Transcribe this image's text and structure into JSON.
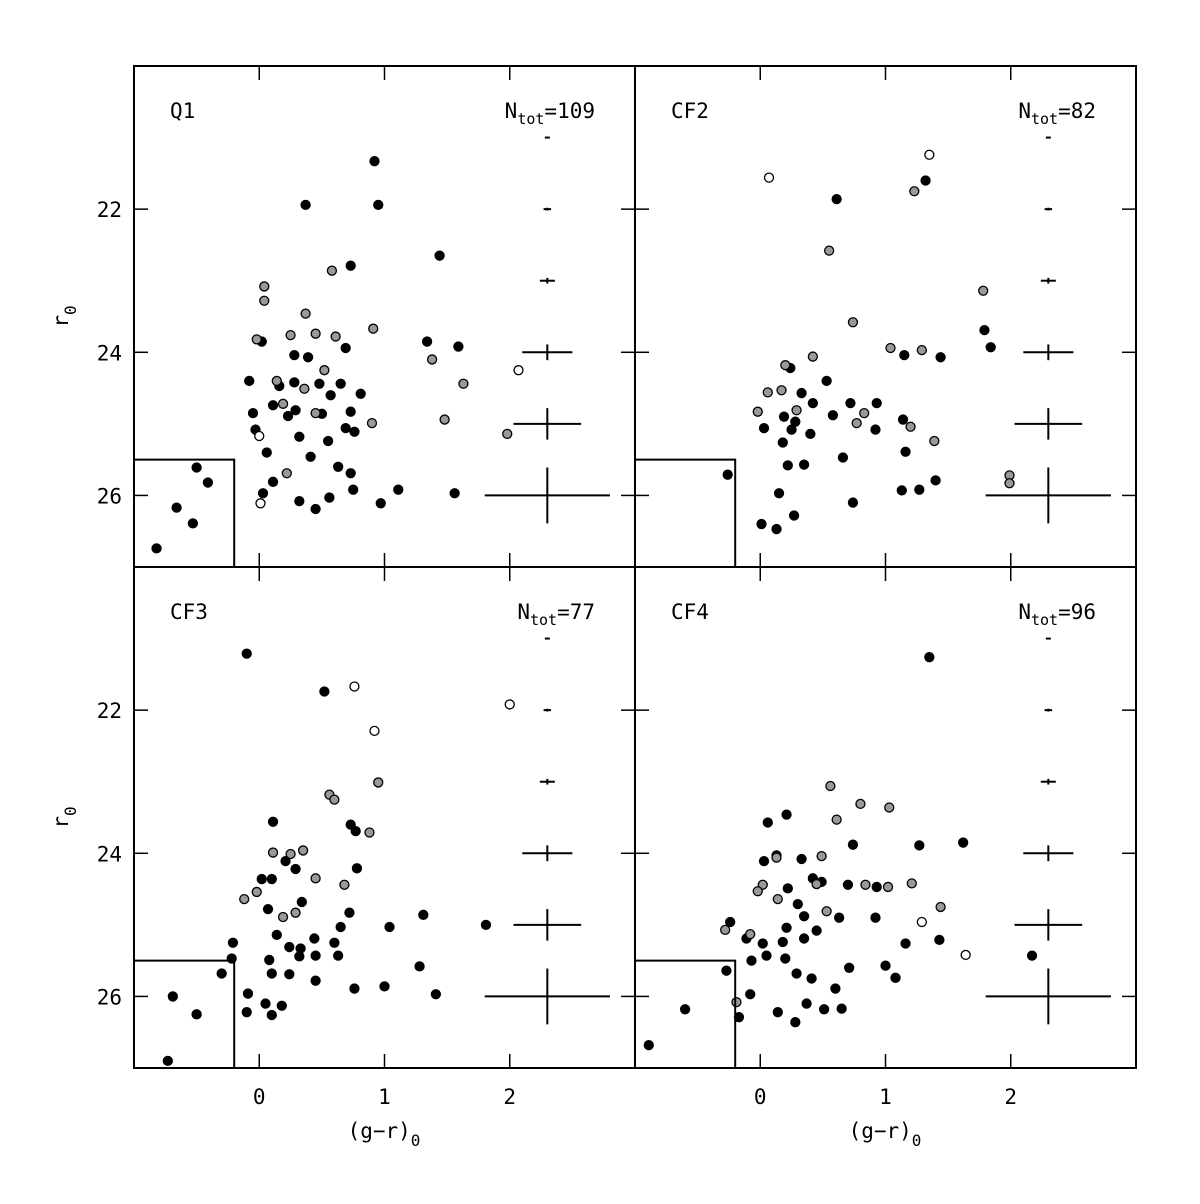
{
  "chart_data": [
    {
      "type": "scatter",
      "title": "Q1",
      "ntot": {
        "symbol": "N",
        "subscript": "tot",
        "text": "=109"
      },
      "ylabel": {
        "text": "r",
        "subscript": "0"
      },
      "tick_labels": [
        "left"
      ],
      "xlim": [
        -1,
        3
      ],
      "ylim": [
        27,
        20
      ],
      "xticks": [
        0,
        1,
        2
      ],
      "yticks": [
        22,
        24,
        26
      ],
      "region": {
        "x": -0.2,
        "y": 25.5
      },
      "errorbars": {
        "x": 2.3,
        "values": [
          21,
          22,
          23,
          24,
          25,
          26
        ],
        "xerr": [
          0.02,
          0.03,
          0.06,
          0.2,
          0.27,
          0.5
        ],
        "yerr": [
          0.01,
          0.02,
          0.04,
          0.11,
          0.22,
          0.39
        ]
      },
      "series": [
        {
          "color": "#000000",
          "x": [
            0.92,
            0.37,
            0.95,
            0.73,
            1.44,
            1.34,
            1.59,
            0.69,
            0.02,
            0.39,
            0.28,
            -0.08,
            0.16,
            0.28,
            0.48,
            0.65,
            0.81,
            0.57,
            0.11,
            0.23,
            -0.05,
            -0.03,
            0.29,
            0.73,
            0.69,
            0.76,
            0.5,
            0.32,
            0.55,
            0.06,
            0.41,
            0.63,
            0.03,
            0.11,
            0.75,
            1.11,
            0.32,
            0.45,
            0.97,
            1.56,
            0.56,
            0.73,
            -0.5,
            -0.41,
            -0.66,
            -0.53,
            -0.82
          ],
          "values": [
            21.33,
            21.94,
            21.94,
            22.79,
            22.65,
            23.85,
            23.92,
            23.94,
            23.85,
            24.07,
            24.04,
            24.4,
            24.47,
            24.42,
            24.44,
            24.44,
            24.58,
            24.6,
            24.74,
            24.89,
            24.85,
            25.08,
            24.81,
            24.83,
            25.06,
            25.11,
            24.86,
            25.18,
            25.24,
            25.4,
            25.46,
            25.6,
            25.97,
            25.81,
            25.92,
            25.92,
            26.08,
            26.19,
            26.11,
            25.97,
            26.03,
            25.69,
            25.61,
            25.82,
            26.17,
            26.39,
            26.74
          ]
        },
        {
          "color": "#999999",
          "x": [
            0.04,
            0.04,
            0.58,
            0.37,
            -0.02,
            0.25,
            0.45,
            0.61,
            0.91,
            1.38,
            1.63,
            1.48,
            1.98,
            0.14,
            0.36,
            0.19,
            0.52,
            0.45,
            0.9,
            0.22
          ],
          "values": [
            23.08,
            23.28,
            22.86,
            23.46,
            23.82,
            23.76,
            23.74,
            23.78,
            23.67,
            24.1,
            24.44,
            24.94,
            25.14,
            24.4,
            24.51,
            24.72,
            24.25,
            24.85,
            24.99,
            25.69
          ]
        },
        {
          "color": "#ffffff",
          "x": [
            0.0,
            0.01,
            2.07
          ],
          "values": [
            25.17,
            26.11,
            24.25
          ]
        }
      ]
    },
    {
      "type": "scatter",
      "title": "CF2",
      "ntot": {
        "symbol": "N",
        "subscript": "tot",
        "text": "=82"
      },
      "tick_labels": [],
      "xlim": [
        -1,
        3
      ],
      "ylim": [
        27,
        20
      ],
      "xticks": [
        0,
        1,
        2
      ],
      "yticks": [
        22,
        24,
        26
      ],
      "region": {
        "x": -0.2,
        "y": 25.5
      },
      "errorbars": {
        "x": 2.3,
        "values": [
          21,
          22,
          23,
          24,
          25,
          26
        ],
        "xerr": [
          0.02,
          0.03,
          0.06,
          0.2,
          0.27,
          0.5
        ],
        "yerr": [
          0.01,
          0.02,
          0.04,
          0.11,
          0.22,
          0.39
        ]
      },
      "series": [
        {
          "color": "#000000",
          "x": [
            0.61,
            1.32,
            1.79,
            1.84,
            1.15,
            1.44,
            0.53,
            0.24,
            0.33,
            0.42,
            0.72,
            0.93,
            0.19,
            0.28,
            0.58,
            0.03,
            0.25,
            0.4,
            0.18,
            0.92,
            1.14,
            1.16,
            0.66,
            0.22,
            0.35,
            0.15,
            1.27,
            1.13,
            1.4,
            0.74,
            0.01,
            0.13,
            0.27,
            -0.26
          ],
          "values": [
            21.86,
            21.6,
            23.69,
            23.93,
            24.04,
            24.07,
            24.4,
            24.22,
            24.57,
            24.71,
            24.71,
            24.71,
            24.9,
            24.97,
            24.88,
            25.06,
            25.08,
            25.14,
            25.26,
            25.08,
            24.94,
            25.39,
            25.47,
            25.58,
            25.57,
            25.97,
            25.92,
            25.93,
            25.79,
            26.1,
            26.4,
            26.47,
            26.28,
            25.71
          ]
        },
        {
          "color": "#999999",
          "x": [
            0.55,
            1.23,
            1.78,
            0.74,
            1.04,
            1.29,
            0.42,
            0.2,
            0.06,
            0.17,
            -0.02,
            0.83,
            1.2,
            1.39,
            0.77,
            0.29,
            1.99,
            1.99
          ],
          "values": [
            22.58,
            21.75,
            23.14,
            23.58,
            23.94,
            23.97,
            24.06,
            24.18,
            24.56,
            24.53,
            24.83,
            24.85,
            25.04,
            25.24,
            24.99,
            24.81,
            25.72,
            25.83
          ]
        },
        {
          "color": "#ffffff",
          "x": [
            0.07,
            1.35
          ],
          "values": [
            21.56,
            21.24
          ]
        }
      ]
    },
    {
      "type": "scatter",
      "title": "CF3",
      "ntot": {
        "symbol": "N",
        "subscript": "tot",
        "text": "=77"
      },
      "ylabel": {
        "text": "r",
        "subscript": "0"
      },
      "xlabel": {
        "text": "(g−r)",
        "subscript": "0"
      },
      "tick_labels": [
        "left",
        "bottom"
      ],
      "xlim": [
        -1,
        3
      ],
      "ylim": [
        27,
        20
      ],
      "xticks": [
        0,
        1,
        2
      ],
      "yticks": [
        22,
        24,
        26
      ],
      "region": {
        "x": -0.2,
        "y": 25.5
      },
      "errorbars": {
        "x": 2.3,
        "values": [
          21,
          22,
          23,
          24,
          25,
          26
        ],
        "xerr": [
          0.02,
          0.03,
          0.06,
          0.2,
          0.27,
          0.5
        ],
        "yerr": [
          0.01,
          0.02,
          0.04,
          0.11,
          0.22,
          0.39
        ]
      },
      "series": [
        {
          "color": "#000000",
          "x": [
            -0.1,
            0.52,
            0.11,
            0.21,
            0.02,
            0.1,
            0.73,
            0.77,
            0.78,
            0.29,
            0.34,
            0.07,
            0.14,
            0.24,
            0.33,
            0.44,
            0.65,
            0.6,
            0.72,
            1.31,
            1.04,
            1.81,
            0.32,
            0.45,
            0.08,
            0.1,
            0.24,
            0.63,
            -0.21,
            -0.22,
            -0.3,
            1.28,
            1.0,
            0.76,
            0.45,
            -0.09,
            0.05,
            -0.1,
            0.1,
            0.18,
            -0.5,
            -0.69,
            -0.73,
            1.41
          ],
          "values": [
            21.21,
            21.74,
            23.56,
            24.11,
            24.36,
            24.36,
            23.6,
            23.69,
            24.21,
            24.22,
            24.68,
            24.78,
            25.14,
            25.31,
            25.33,
            25.19,
            25.03,
            25.25,
            24.83,
            24.86,
            25.03,
            25.0,
            25.44,
            25.43,
            25.49,
            25.68,
            25.69,
            25.43,
            25.25,
            25.47,
            25.68,
            25.58,
            25.86,
            25.89,
            25.78,
            25.96,
            26.1,
            26.22,
            26.26,
            26.13,
            26.25,
            26.0,
            26.9,
            25.97
          ]
        },
        {
          "color": "#999999",
          "x": [
            0.56,
            0.6,
            0.95,
            0.88,
            0.68,
            0.11,
            0.25,
            0.35,
            0.45,
            -0.12,
            -0.02,
            0.29,
            0.19
          ],
          "values": [
            23.18,
            23.25,
            23.01,
            23.71,
            24.44,
            23.99,
            24.01,
            23.96,
            24.35,
            24.64,
            24.54,
            24.83,
            24.89
          ]
        },
        {
          "color": "#ffffff",
          "x": [
            0.76,
            0.92,
            2.0
          ],
          "values": [
            21.67,
            22.29,
            21.92
          ]
        }
      ]
    },
    {
      "type": "scatter",
      "title": "CF4",
      "ntot": {
        "symbol": "N",
        "subscript": "tot",
        "text": "=96"
      },
      "xlabel": {
        "text": "(g−r)",
        "subscript": "0"
      },
      "tick_labels": [
        "bottom"
      ],
      "xlim": [
        -1,
        3
      ],
      "ylim": [
        27,
        20
      ],
      "xticks": [
        0,
        1,
        2
      ],
      "yticks": [
        22,
        24,
        26
      ],
      "region": {
        "x": -0.2,
        "y": 25.5
      },
      "errorbars": {
        "x": 2.3,
        "values": [
          21,
          22,
          23,
          24,
          25,
          26
        ],
        "xerr": [
          0.02,
          0.03,
          0.06,
          0.2,
          0.27,
          0.5
        ],
        "yerr": [
          0.01,
          0.02,
          0.04,
          0.11,
          0.22,
          0.39
        ]
      },
      "series": [
        {
          "color": "#000000",
          "x": [
            1.35,
            0.74,
            1.27,
            1.62,
            0.06,
            0.21,
            0.13,
            0.03,
            0.33,
            0.42,
            0.22,
            0.3,
            0.49,
            0.7,
            0.93,
            0.92,
            0.63,
            0.35,
            0.45,
            0.21,
            0.35,
            0.18,
            0.02,
            -0.11,
            -0.24,
            -0.27,
            -0.07,
            0.05,
            0.2,
            0.29,
            0.41,
            0.37,
            0.51,
            0.65,
            0.6,
            0.71,
            1.0,
            1.08,
            1.16,
            1.43,
            2.17,
            -0.08,
            -0.17,
            0.14,
            0.28,
            -0.6,
            -0.89
          ],
          "values": [
            21.26,
            23.88,
            23.89,
            23.85,
            23.57,
            23.46,
            24.03,
            24.11,
            24.08,
            24.35,
            24.49,
            24.71,
            24.4,
            24.44,
            24.47,
            24.9,
            24.9,
            24.88,
            25.08,
            25.04,
            25.19,
            25.24,
            25.26,
            25.19,
            24.96,
            25.64,
            25.5,
            25.43,
            25.47,
            25.68,
            25.75,
            26.1,
            26.18,
            26.17,
            25.89,
            25.6,
            25.57,
            25.74,
            25.26,
            25.21,
            25.43,
            25.97,
            26.29,
            26.22,
            26.36,
            26.18,
            26.68
          ]
        },
        {
          "color": "#999999",
          "x": [
            0.56,
            0.61,
            0.8,
            1.03,
            0.13,
            0.02,
            0.49,
            -0.08,
            -0.28,
            -0.02,
            0.45,
            0.84,
            1.02,
            1.21,
            1.44,
            0.14,
            0.53,
            -0.19
          ],
          "values": [
            23.06,
            23.53,
            23.31,
            23.36,
            24.06,
            24.44,
            24.04,
            25.13,
            25.07,
            24.53,
            24.43,
            24.44,
            24.47,
            24.42,
            24.75,
            24.64,
            24.81,
            26.08
          ]
        },
        {
          "color": "#ffffff",
          "x": [
            1.29,
            1.64
          ],
          "values": [
            24.96,
            25.42
          ]
        }
      ]
    }
  ]
}
